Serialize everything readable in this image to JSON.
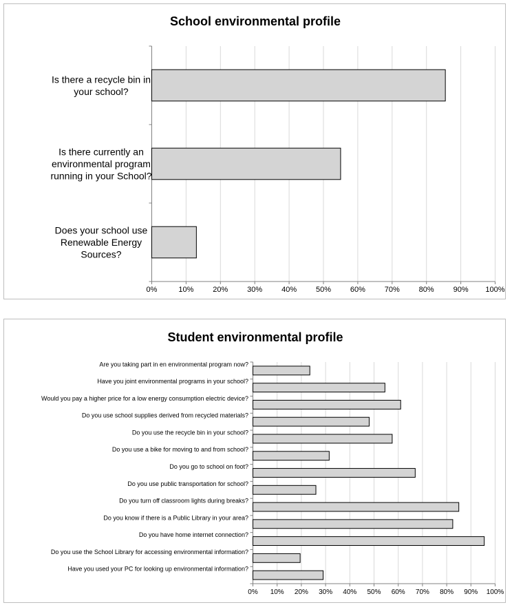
{
  "chart_data": [
    {
      "type": "bar",
      "orientation": "horizontal",
      "title": "School environmental profile",
      "categories": [
        [
          "Is there a recycle bin in",
          "your school?"
        ],
        [
          "Is there currently an",
          "environmental program",
          "running in your School?"
        ],
        [
          "Does your school use",
          "Renewable Energy",
          "Sources?"
        ]
      ],
      "values": [
        85.5,
        55,
        13
      ],
      "xlim": [
        0,
        100
      ],
      "ticks": [
        "0%",
        "10%",
        "20%",
        "30%",
        "40%",
        "50%",
        "60%",
        "70%",
        "80%",
        "90%",
        "100%"
      ],
      "grid": true,
      "bar_color": "#d4d4d4"
    },
    {
      "type": "bar",
      "orientation": "horizontal",
      "title": "Student environmental profile",
      "categories": [
        "Are you taking part in en environmental program now?",
        "Have you joint environmental programs in your school?",
        "Would you pay a higher price for a low energy consumption electric device?",
        "Do you use school supplies derived from recycled materials?",
        "Do you use the recycle bin in your school?",
        "Do you use a bike for moving to and from school?",
        "Do you go to school on foot?",
        "Do you use public transportation for school?",
        "Do you turn off classroom lights during breaks?",
        "Do you know if there is a Public Library in your area?",
        "Do you have home internet connection?",
        "Do you use the School Library for accessing environmental information?",
        "Have you used your PC for looking up environmental information?"
      ],
      "values": [
        23.5,
        54.5,
        61,
        48,
        57.5,
        31.5,
        67,
        26,
        85,
        82.5,
        95.5,
        19.5,
        29
      ],
      "xlim": [
        0,
        100
      ],
      "ticks": [
        "0%",
        "10%",
        "20%",
        "30%",
        "40%",
        "50%",
        "60%",
        "70%",
        "80%",
        "90%",
        "100%"
      ],
      "grid": true,
      "bar_color": "#d4d4d4"
    }
  ]
}
